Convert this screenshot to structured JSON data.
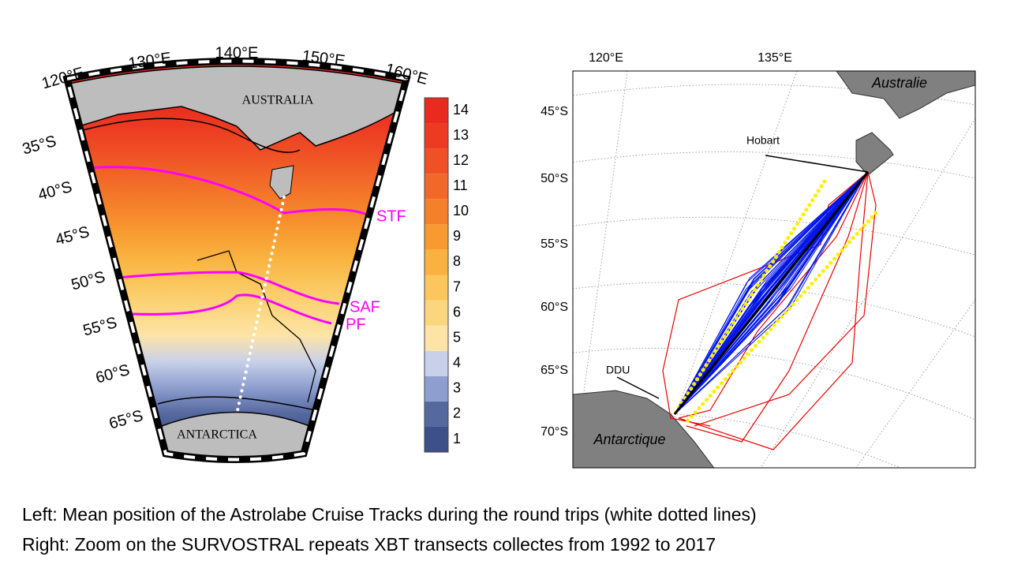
{
  "left_map": {
    "longitude_labels": [
      "120°E",
      "130°E",
      "140°E",
      "150°E",
      "160°E"
    ],
    "latitude_labels": [
      "35°S",
      "40°S",
      "45°S",
      "50°S",
      "55°S",
      "60°S",
      "65°S"
    ],
    "land_labels": [
      "AUSTRALIA",
      "ANTARCTICA"
    ],
    "front_labels": [
      "STF",
      "SAF",
      "PF"
    ],
    "colorbar": {
      "ticks": [
        1,
        2,
        3,
        4,
        5,
        6,
        7,
        8,
        9,
        10,
        11,
        12,
        13,
        14
      ],
      "colors": [
        "#3d5089",
        "#55699f",
        "#8e9fcf",
        "#c9d1ea",
        "#fde4a6",
        "#fcd67f",
        "#fbc65c",
        "#f9b23f",
        "#f89a30",
        "#f5802a",
        "#f26828",
        "#ef5025",
        "#ec3b22",
        "#e82a1f"
      ]
    }
  },
  "right_map": {
    "longitude_labels": [
      "120°E",
      "135°E"
    ],
    "latitude_labels": [
      "45°S",
      "50°S",
      "55°S",
      "60°S",
      "65°S",
      "70°S"
    ],
    "land_labels": [
      "Australie",
      "Antarctique"
    ],
    "place_labels": [
      "Hobart",
      "DDU"
    ]
  },
  "caption": [
    "Left: Mean position of the Astrolabe Cruise Tracks during the round trips (white dotted lines)",
    "Right: Zoom on the SURVOSTRAL repeats  XBT transects collectes from 1992 to 2017"
  ]
}
